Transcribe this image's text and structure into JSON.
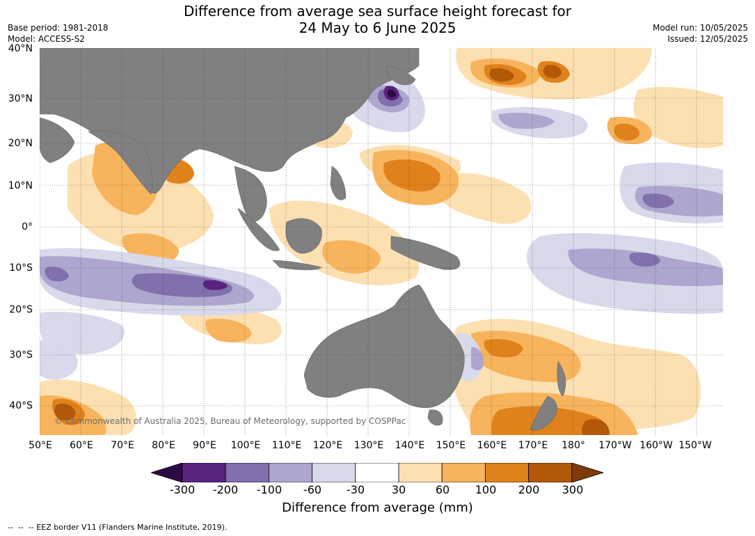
{
  "title": {
    "line1": "Difference from average sea surface height forecast for",
    "line2": "24 May to 6 June 2025"
  },
  "meta": {
    "base_period": "Base period: 1981-2018",
    "model": "Model: ACCESS-S2",
    "model_run": "Model run: 10/05/2025",
    "issued": "Issued: 12/05/2025"
  },
  "map": {
    "lat_labels": [
      "40°N",
      "30°N",
      "20°N",
      "10°N",
      "0°",
      "10°S",
      "20°S",
      "30°S",
      "40°S"
    ],
    "lon_labels": [
      "50°E",
      "60°E",
      "70°E",
      "80°E",
      "90°E",
      "100°E",
      "110°E",
      "120°E",
      "130°E",
      "140°E",
      "150°E",
      "160°E",
      "170°E",
      "180°",
      "170°W",
      "160°W",
      "150°W"
    ],
    "copyright": "© Commonwealth of Australia 2025, Bureau of Meteorology, supported by COSPPac",
    "land_color": "#808080"
  },
  "colorbar": {
    "ticks": [
      "-300",
      "-200",
      "-100",
      "-60",
      "-30",
      "30",
      "60",
      "100",
      "200",
      "300"
    ],
    "colors": [
      "#2d0a45",
      "#59237f",
      "#8170ac",
      "#aea6cf",
      "#d8d9eb",
      "#ffffff",
      "#fde0b2",
      "#f8b45c",
      "#e0821c",
      "#b25808",
      "#7f3b08"
    ],
    "title": "Difference from average (mm)"
  },
  "footer": "--  --  -- EEZ border V11 (Flanders Marine Institute, 2019)."
}
